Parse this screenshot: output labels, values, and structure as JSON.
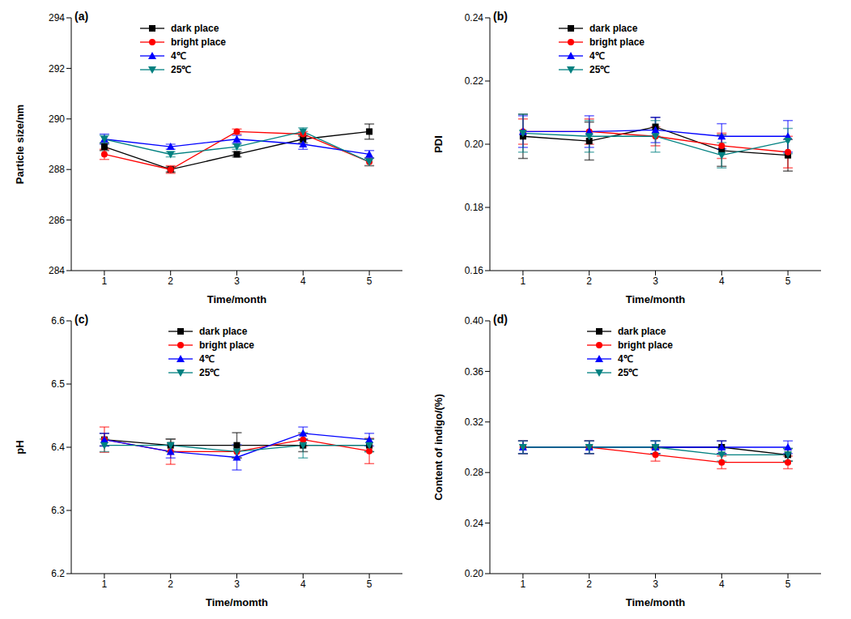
{
  "chart_data": [
    {
      "type": "line",
      "title": "(a)",
      "x_label": "Time/month",
      "y_label": "Particle size/nm",
      "x": [
        1,
        2,
        3,
        4,
        5
      ],
      "xlim": [
        0.5,
        5.5
      ],
      "xticks": [
        1,
        2,
        3,
        4,
        5
      ],
      "ylim": [
        284,
        294
      ],
      "yticks": [
        284,
        286,
        288,
        290,
        292,
        294
      ],
      "legend": "upper left",
      "series": [
        {
          "name": "dark place",
          "color": "#000000",
          "marker": "square",
          "values": [
            288.9,
            288.0,
            288.6,
            289.2,
            289.5
          ],
          "errors": [
            0.15,
            0.1,
            0.1,
            0.15,
            0.3
          ]
        },
        {
          "name": "bright place",
          "color": "#ff0000",
          "marker": "circle",
          "values": [
            288.6,
            288.0,
            289.5,
            289.4,
            288.3
          ],
          "errors": [
            0.2,
            0.15,
            0.1,
            0.1,
            0.15
          ]
        },
        {
          "name": "4℃",
          "color": "#0000ff",
          "marker": "triangle",
          "values": [
            289.2,
            288.9,
            289.2,
            289.0,
            288.6
          ],
          "errors": [
            0.2,
            0.1,
            0.15,
            0.2,
            0.15
          ]
        },
        {
          "name": "25℃",
          "color": "#008080",
          "marker": "triangle-down",
          "values": [
            289.2,
            288.6,
            288.9,
            289.5,
            288.3
          ],
          "errors": [
            0.15,
            0.1,
            0.1,
            0.15,
            0.15
          ]
        }
      ]
    },
    {
      "type": "line",
      "title": "(b)",
      "x_label": "Time/month",
      "y_label": "PDI",
      "x": [
        1,
        2,
        3,
        4,
        5
      ],
      "xlim": [
        0.5,
        5.5
      ],
      "xticks": [
        1,
        2,
        3,
        4,
        5
      ],
      "ylim": [
        0.16,
        0.24
      ],
      "yticks": [
        0.16,
        0.18,
        {
          "value": 0.2,
          "label": "0.20"
        },
        0.22,
        0.24
      ],
      "legend": "upper left",
      "series": [
        {
          "name": "dark place",
          "color": "#000000",
          "marker": "square",
          "values": [
            0.2025,
            0.201,
            0.2055,
            0.198,
            0.1965
          ],
          "errors": [
            0.007,
            0.006,
            0.003,
            0.005,
            0.005
          ]
        },
        {
          "name": "bright place",
          "color": "#ff0000",
          "marker": "circle",
          "values": [
            0.204,
            0.204,
            0.2025,
            0.1995,
            0.1975
          ],
          "errors": [
            0.004,
            0.004,
            0.003,
            0.004,
            0.005
          ]
        },
        {
          "name": "4℃",
          "color": "#0000ff",
          "marker": "triangle",
          "values": [
            0.204,
            0.204,
            0.2045,
            0.2025,
            0.2025
          ],
          "errors": [
            0.005,
            0.005,
            0.004,
            0.004,
            0.005
          ]
        },
        {
          "name": "25℃",
          "color": "#008080",
          "marker": "triangle-down",
          "values": [
            0.2035,
            0.2025,
            0.2025,
            0.1965,
            0.201
          ],
          "errors": [
            0.006,
            0.005,
            0.005,
            0.004,
            0.004
          ]
        }
      ]
    },
    {
      "type": "line",
      "title": "(c)",
      "x_label": "Time/momth",
      "y_label": "pH",
      "x": [
        1,
        2,
        3,
        4,
        5
      ],
      "xlim": [
        0.5,
        5.5
      ],
      "xticks": [
        1,
        2,
        3,
        4,
        5
      ],
      "ylim": [
        6.2,
        6.6
      ],
      "yticks": [
        6.2,
        6.3,
        6.4,
        6.5,
        6.6
      ],
      "legend": "upper right",
      "series": [
        {
          "name": "dark place",
          "color": "#000000",
          "marker": "square",
          "values": [
            6.412,
            6.403,
            6.403,
            6.403,
            6.403
          ],
          "errors": [
            0.01,
            0.01,
            0.02,
            0.01,
            0.01
          ]
        },
        {
          "name": "bright place",
          "color": "#ff0000",
          "marker": "circle",
          "values": [
            6.412,
            6.393,
            6.393,
            6.412,
            6.394
          ],
          "errors": [
            0.02,
            0.02,
            0.01,
            0.01,
            0.02
          ]
        },
        {
          "name": "4℃",
          "color": "#0000ff",
          "marker": "triangle",
          "values": [
            6.412,
            6.393,
            6.384,
            6.422,
            6.412
          ],
          "errors": [
            0.01,
            0.01,
            0.02,
            0.01,
            0.01
          ]
        },
        {
          "name": "25℃",
          "color": "#008080",
          "marker": "triangle-down",
          "values": [
            6.403,
            6.403,
            6.393,
            6.403,
            6.403
          ],
          "errors": [
            0.01,
            0.01,
            0.01,
            0.02,
            0.01
          ]
        }
      ]
    },
    {
      "type": "line",
      "title": "(d)",
      "x_label": "Time/month",
      "y_label": "Content of indigo/(%)",
      "x": [
        1,
        2,
        3,
        4,
        5
      ],
      "xlim": [
        0.5,
        5.5
      ],
      "xticks": [
        1,
        2,
        3,
        4,
        5
      ],
      "ylim": [
        0.2,
        0.4
      ],
      "yticks": [
        {
          "value": 0.2,
          "label": "0.20"
        },
        0.24,
        0.28,
        0.32,
        0.36,
        {
          "value": 0.4,
          "label": "0.40"
        }
      ],
      "legend": "upper right",
      "series": [
        {
          "name": "dark place",
          "color": "#000000",
          "marker": "square",
          "values": [
            0.3,
            0.3,
            0.3,
            0.3,
            0.294
          ],
          "errors": [
            0.005,
            0.005,
            0.005,
            0.005,
            0.005
          ]
        },
        {
          "name": "bright place",
          "color": "#ff0000",
          "marker": "circle",
          "values": [
            0.3,
            0.3,
            0.294,
            0.288,
            0.288
          ],
          "errors": [
            0.005,
            0.005,
            0.005,
            0.005,
            0.005
          ]
        },
        {
          "name": "4℃",
          "color": "#0000ff",
          "marker": "triangle",
          "values": [
            0.3,
            0.3,
            0.3,
            0.3,
            0.3
          ],
          "errors": [
            0.005,
            0.005,
            0.005,
            0.005,
            0.005
          ]
        },
        {
          "name": "25℃",
          "color": "#008080",
          "marker": "triangle-down",
          "values": [
            0.3,
            0.3,
            0.3,
            0.294,
            0.294
          ],
          "errors": [
            0.005,
            0.005,
            0.005,
            0.005,
            0.005
          ]
        }
      ]
    }
  ]
}
